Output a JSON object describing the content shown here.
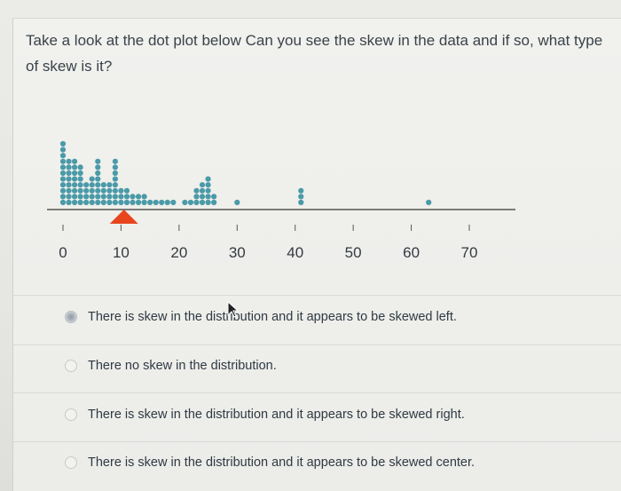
{
  "question": {
    "text": "Take a look at the dot plot below Can you see the skew in the data and if so, what type of skew is it?"
  },
  "chart_data": {
    "type": "scatter",
    "subtype": "dot-plot",
    "xlim": [
      0,
      70
    ],
    "x_ticks": [
      0,
      10,
      20,
      30,
      40,
      50,
      60,
      70
    ],
    "x_tick_labels": [
      "0",
      "10",
      "20",
      "30",
      "40",
      "50",
      "60",
      "70"
    ],
    "dot_color": "#4a9aa8",
    "axis_color": "#555555",
    "balance_point_marker": {
      "x": 10.5,
      "color": "#e8451d"
    },
    "stacks": [
      {
        "x": 0,
        "count": 11
      },
      {
        "x": 1,
        "count": 8
      },
      {
        "x": 2,
        "count": 8
      },
      {
        "x": 3,
        "count": 7
      },
      {
        "x": 4,
        "count": 4
      },
      {
        "x": 5,
        "count": 5
      },
      {
        "x": 6,
        "count": 8
      },
      {
        "x": 7,
        "count": 4
      },
      {
        "x": 8,
        "count": 4
      },
      {
        "x": 9,
        "count": 8
      },
      {
        "x": 10,
        "count": 3
      },
      {
        "x": 11,
        "count": 3
      },
      {
        "x": 12,
        "count": 2
      },
      {
        "x": 13,
        "count": 2
      },
      {
        "x": 14,
        "count": 2
      },
      {
        "x": 15,
        "count": 1
      },
      {
        "x": 16,
        "count": 1
      },
      {
        "x": 17,
        "count": 1
      },
      {
        "x": 18,
        "count": 1
      },
      {
        "x": 19,
        "count": 1
      },
      {
        "x": 21,
        "count": 1
      },
      {
        "x": 22,
        "count": 1
      },
      {
        "x": 23,
        "count": 3
      },
      {
        "x": 24,
        "count": 4
      },
      {
        "x": 25,
        "count": 5
      },
      {
        "x": 26,
        "count": 2
      },
      {
        "x": 30,
        "count": 1
      },
      {
        "x": 41,
        "count": 3
      },
      {
        "x": 63,
        "count": 1
      }
    ]
  },
  "answers": [
    {
      "label": "There is skew in the distribution and it appears to be skewed left.",
      "selected": true
    },
    {
      "label": "There no skew in the distribution.",
      "selected": false
    },
    {
      "label": "There is skew in the distribution and it appears to be skewed right.",
      "selected": false
    },
    {
      "label": "There is skew in the distribution and it appears to be skewed center.",
      "selected": false
    }
  ]
}
